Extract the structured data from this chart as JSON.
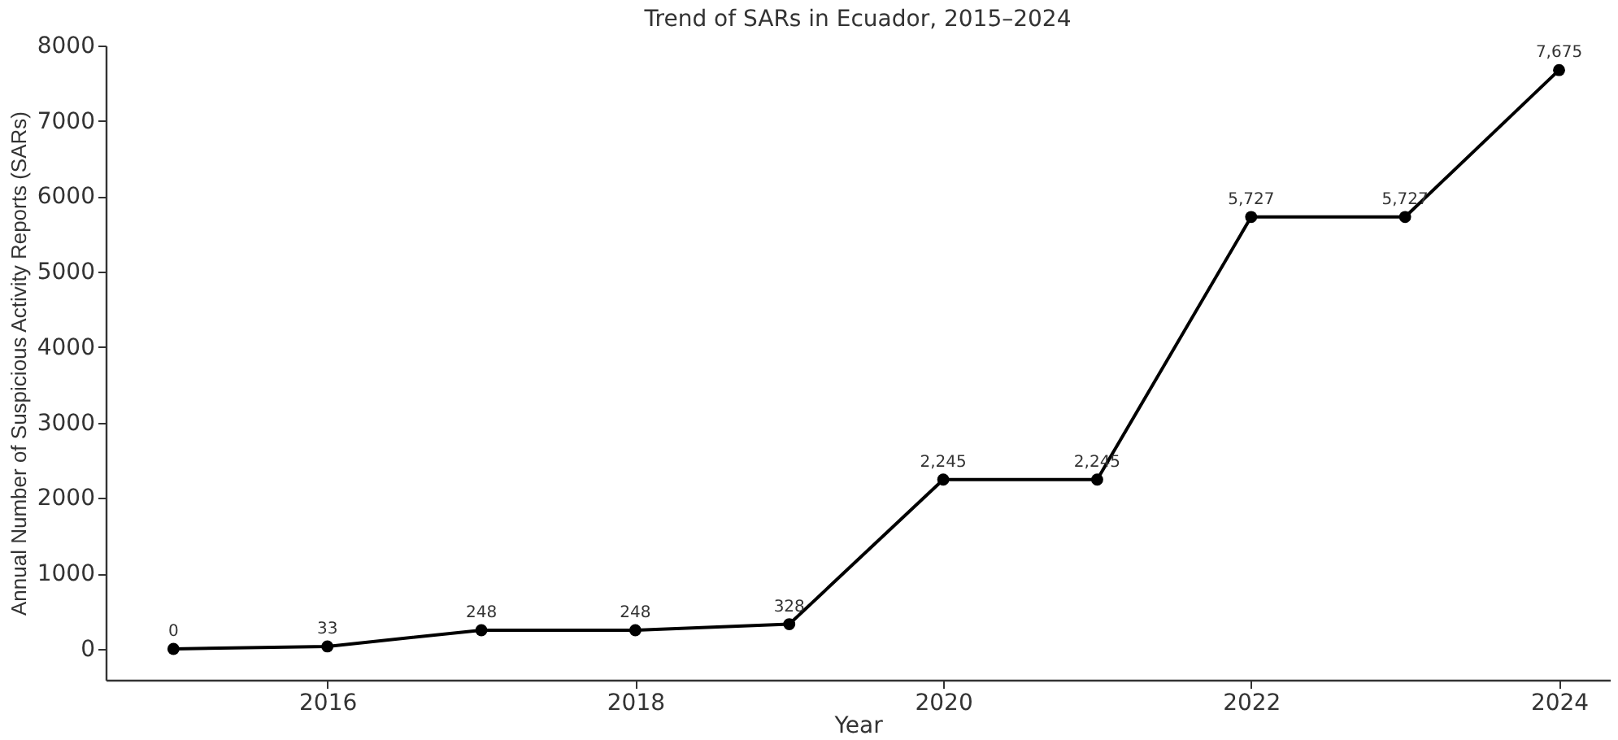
{
  "chart_data": {
    "type": "line",
    "title": "Trend of SARs in Ecuador, 2015–2024",
    "xlabel": "Year",
    "ylabel": "Annual Number of Suspicious Activity Reports (SARs)",
    "x": [
      2015,
      2016,
      2017,
      2018,
      2019,
      2020,
      2021,
      2022,
      2023,
      2024
    ],
    "series": [
      {
        "color": "#000000",
        "values": [
          0,
          33,
          248,
          248,
          328,
          2245,
          2245,
          5727,
          5727,
          7675
        ],
        "value_labels": [
          "0",
          "33",
          "248",
          "248",
          "328",
          "2,245",
          "2,245",
          "5,727",
          "5,727",
          "7,675"
        ]
      }
    ],
    "xlim": [
      2014.56,
      2024.33
    ],
    "ylim": [
      -410,
      8000
    ],
    "xticks": [
      2016,
      2018,
      2020,
      2022,
      2024
    ],
    "yticks": [
      0,
      1000,
      2000,
      3000,
      4000,
      5000,
      6000,
      7000,
      8000
    ],
    "marker": "circle",
    "line_style": "solid",
    "grid": false
  }
}
